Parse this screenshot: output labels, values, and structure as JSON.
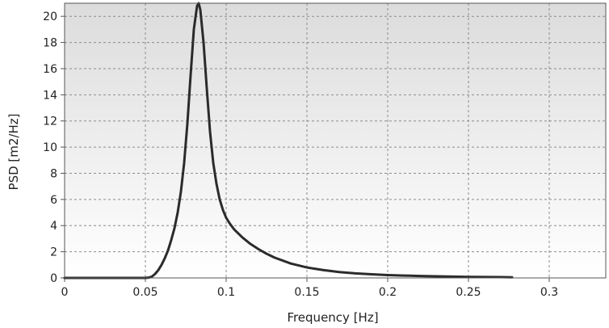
{
  "chart_data": {
    "type": "line",
    "title": "",
    "xlabel": "Frequency [Hz]",
    "ylabel": "PSD [m2/Hz]",
    "xlim": [
      0,
      0.335
    ],
    "ylim": [
      0,
      21
    ],
    "x_ticks": [
      0,
      0.05,
      0.1,
      0.15,
      0.2,
      0.25,
      0.3
    ],
    "x_tick_labels": [
      "0",
      "0.05",
      "0.1",
      "0.15",
      "0.2",
      "0.25",
      "0.3"
    ],
    "y_ticks": [
      0,
      2,
      4,
      6,
      8,
      10,
      12,
      14,
      16,
      18,
      20
    ],
    "y_tick_labels": [
      "0",
      "2",
      "4",
      "6",
      "8",
      "10",
      "12",
      "14",
      "16",
      "18",
      "20"
    ],
    "grid": true,
    "legend": "none",
    "colors": {
      "line": "#2b2b2b",
      "grid": "#8c8c8c",
      "background_top": "#dcdcdc",
      "background_bottom": "#ffffff",
      "frame": "#555555"
    },
    "series": [
      {
        "x": [
          0,
          0.05,
          0.052,
          0.054,
          0.056,
          0.058,
          0.06,
          0.062,
          0.064,
          0.066,
          0.068,
          0.07,
          0.072,
          0.074,
          0.076,
          0.078,
          0.08,
          0.082,
          0.083,
          0.084,
          0.086,
          0.088,
          0.09,
          0.092,
          0.094,
          0.096,
          0.098,
          0.1,
          0.102,
          0.105,
          0.11,
          0.115,
          0.12,
          0.125,
          0.13,
          0.14,
          0.15,
          0.16,
          0.17,
          0.18,
          0.19,
          0.2,
          0.21,
          0.22,
          0.23,
          0.24,
          0.25,
          0.26,
          0.27,
          0.277
        ],
        "y": [
          0,
          0,
          0.02,
          0.1,
          0.3,
          0.6,
          1.0,
          1.5,
          2.1,
          2.9,
          3.8,
          5.0,
          6.6,
          8.8,
          11.8,
          15.5,
          19.0,
          20.8,
          21.0,
          20.5,
          18.0,
          14.5,
          11.2,
          8.8,
          7.2,
          6.0,
          5.2,
          4.6,
          4.2,
          3.7,
          3.1,
          2.6,
          2.2,
          1.85,
          1.55,
          1.1,
          0.8,
          0.6,
          0.45,
          0.35,
          0.28,
          0.22,
          0.18,
          0.15,
          0.12,
          0.1,
          0.08,
          0.07,
          0.06,
          0.05
        ]
      }
    ]
  }
}
